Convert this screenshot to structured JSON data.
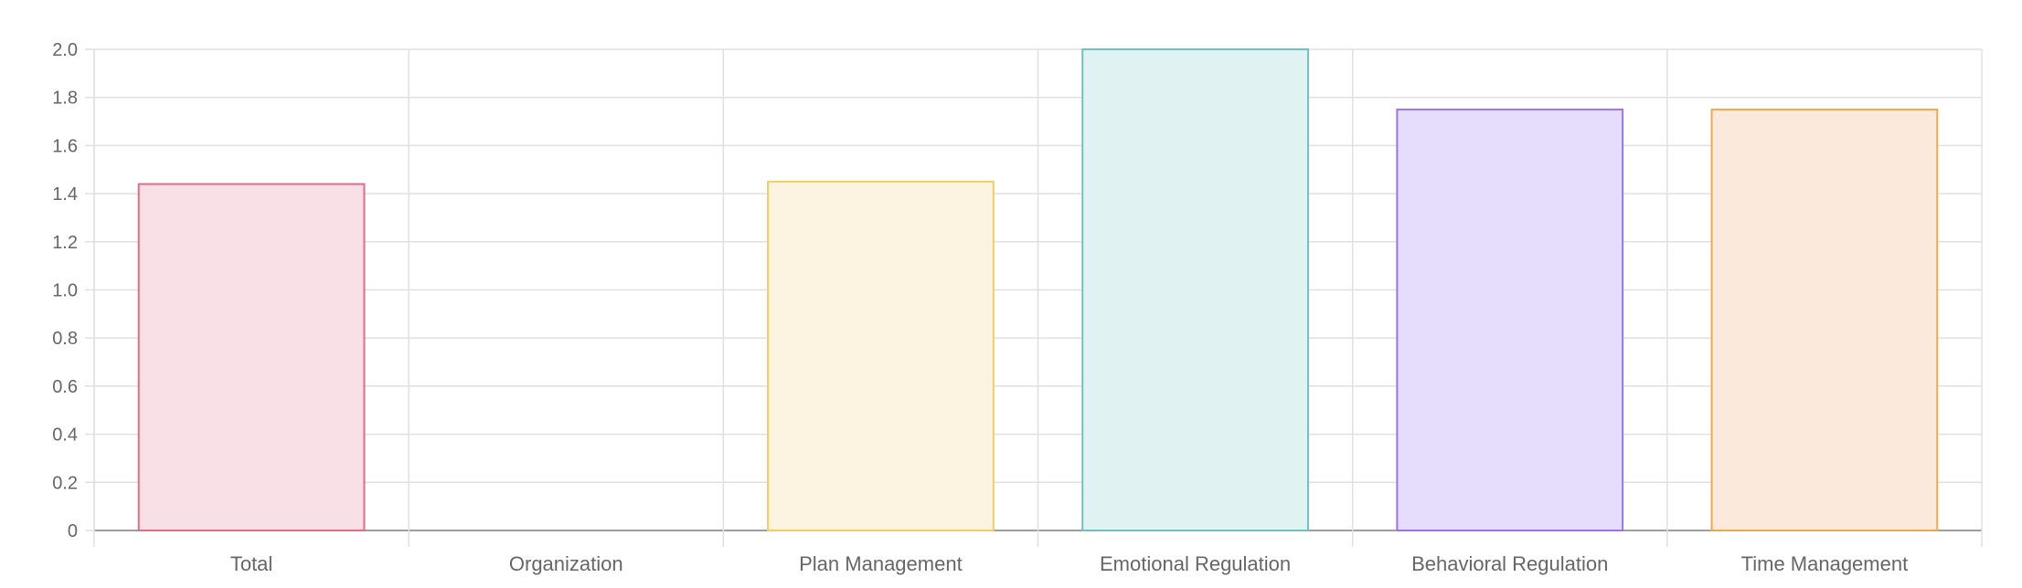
{
  "chart_data": {
    "type": "bar",
    "categories": [
      "Total",
      "Organization",
      "Plan Management",
      "Emotional Regulation",
      "Behavioral Regulation",
      "Time Management"
    ],
    "series": [
      {
        "values": [
          1.44,
          0,
          1.45,
          2.0,
          1.75,
          1.75
        ]
      }
    ],
    "ylim": [
      0,
      2.0
    ],
    "y_ticks": [
      "0",
      "0.2",
      "0.4",
      "0.6",
      "0.8",
      "1.0",
      "1.2",
      "1.4",
      "1.6",
      "1.8",
      "2.0"
    ],
    "grid": true,
    "bar_colors": [
      {
        "fill": "#f9e0e6",
        "stroke": "#e36b85"
      },
      {
        "fill": "#e3effb",
        "stroke": "#5aa2e0"
      },
      {
        "fill": "#fcf3e0",
        "stroke": "#f2cd62"
      },
      {
        "fill": "#e0f2f1",
        "stroke": "#6cc3c0"
      },
      {
        "fill": "#e6ddfd",
        "stroke": "#9b73f0"
      },
      {
        "fill": "#fbeadb",
        "stroke": "#f0a84e"
      }
    ],
    "grid_color": "#e0e0e0",
    "axis_color": "#9e9e9e"
  }
}
